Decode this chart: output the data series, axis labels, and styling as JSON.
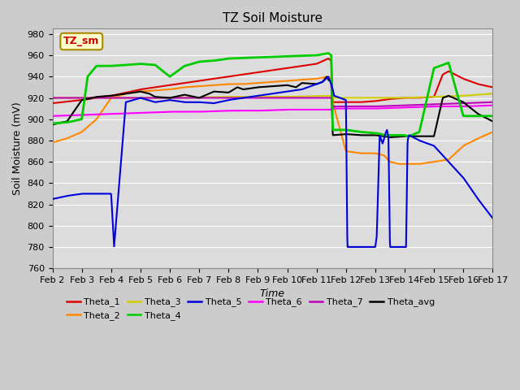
{
  "title": "TZ Soil Moisture",
  "ylabel": "Soil Moisture (mV)",
  "xlabel": "Time",
  "ylim": [
    760,
    985
  ],
  "yticks": [
    760,
    780,
    800,
    820,
    840,
    860,
    880,
    900,
    920,
    940,
    960,
    980
  ],
  "date_labels": [
    "Feb 2",
    "Feb 3",
    "Feb 4",
    "Feb 5",
    "Feb 6",
    "Feb 7",
    "Feb 8",
    "Feb 9",
    "Feb 10",
    "Feb 11",
    "Feb 12",
    "Feb 13",
    "Feb 14",
    "Feb 15",
    "Feb 16",
    "Feb 17"
  ],
  "annotation_label": "TZ_sm",
  "annotation_color": "#cc0000",
  "annotation_bg": "#ffffcc",
  "fig_color": "#cccccc",
  "plot_bg": "#dcdcdc",
  "series": {
    "Theta_1": {
      "color": "#dd0000",
      "lw": 1.5
    },
    "Theta_2": {
      "color": "#ff8800",
      "lw": 1.5
    },
    "Theta_3": {
      "color": "#cccc00",
      "lw": 1.5
    },
    "Theta_4": {
      "color": "#00cc00",
      "lw": 2.0
    },
    "Theta_5": {
      "color": "#0000dd",
      "lw": 1.5
    },
    "Theta_6": {
      "color": "#ff00ff",
      "lw": 1.5
    },
    "Theta_7": {
      "color": "#bb00bb",
      "lw": 1.5
    },
    "Theta_avg": {
      "color": "#000000",
      "lw": 1.5
    }
  },
  "legend": [
    {
      "label": "Theta_1",
      "color": "#dd0000"
    },
    {
      "label": "Theta_2",
      "color": "#ff8800"
    },
    {
      "label": "Theta_3",
      "color": "#cccc00"
    },
    {
      "label": "Theta_4",
      "color": "#00cc00"
    },
    {
      "label": "Theta_5",
      "color": "#0000dd"
    },
    {
      "label": "Theta_6",
      "color": "#ff00ff"
    },
    {
      "label": "Theta_7",
      "color": "#bb00bb"
    },
    {
      "label": "Theta_avg",
      "color": "#000000"
    }
  ]
}
